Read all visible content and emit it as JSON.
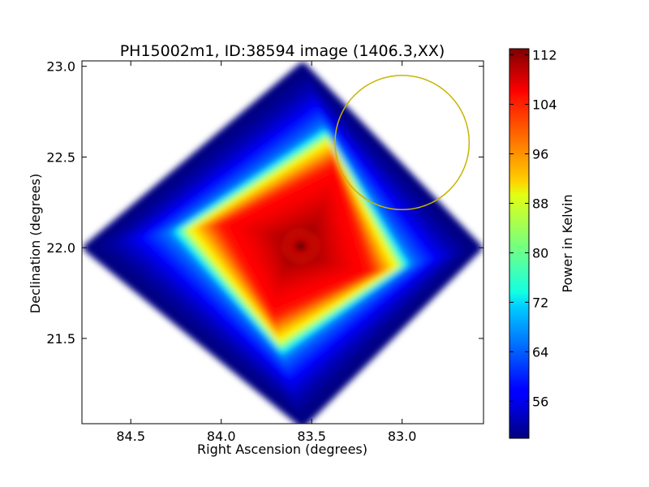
{
  "chart_data": {
    "type": "heatmap",
    "title": "PH15002m1, ID:38594 image (1406.3,XX)",
    "xlabel": "Right Ascension (degrees)",
    "ylabel": "Declination (degrees)",
    "xlim": [
      84.77,
      82.55
    ],
    "ylim": [
      21.03,
      23.03
    ],
    "x_ticks": [
      84.5,
      84.0,
      83.5,
      83.0
    ],
    "x_tick_labels": [
      "84.5",
      "84.0",
      "83.5",
      "83.0"
    ],
    "y_ticks": [
      21.5,
      22.0,
      22.5,
      23.0
    ],
    "y_tick_labels": [
      "21.5",
      "22.0",
      "22.5",
      "23.0"
    ],
    "field": {
      "shape": "rotated-square",
      "corners": [
        [
          83.55,
          23.0
        ],
        [
          82.58,
          22.0
        ],
        [
          83.55,
          21.03
        ],
        [
          84.74,
          22.0
        ]
      ],
      "peak_center": [
        83.57,
        22.0
      ],
      "peak_value": 112,
      "edge_value": 50,
      "background": "#ffffff"
    },
    "circle_annotation": {
      "center": [
        83.0,
        22.58
      ],
      "radius_dec": 0.37,
      "color": "#c8b400"
    },
    "colorbar": {
      "label": "Power in Kelvin",
      "colormap": "jet",
      "min": 50,
      "max": 113,
      "ticks": [
        56,
        64,
        72,
        80,
        88,
        96,
        104,
        112
      ],
      "tick_labels": [
        "56",
        "64",
        "72",
        "80",
        "88",
        "96",
        "104",
        "112"
      ]
    },
    "grid": false
  }
}
